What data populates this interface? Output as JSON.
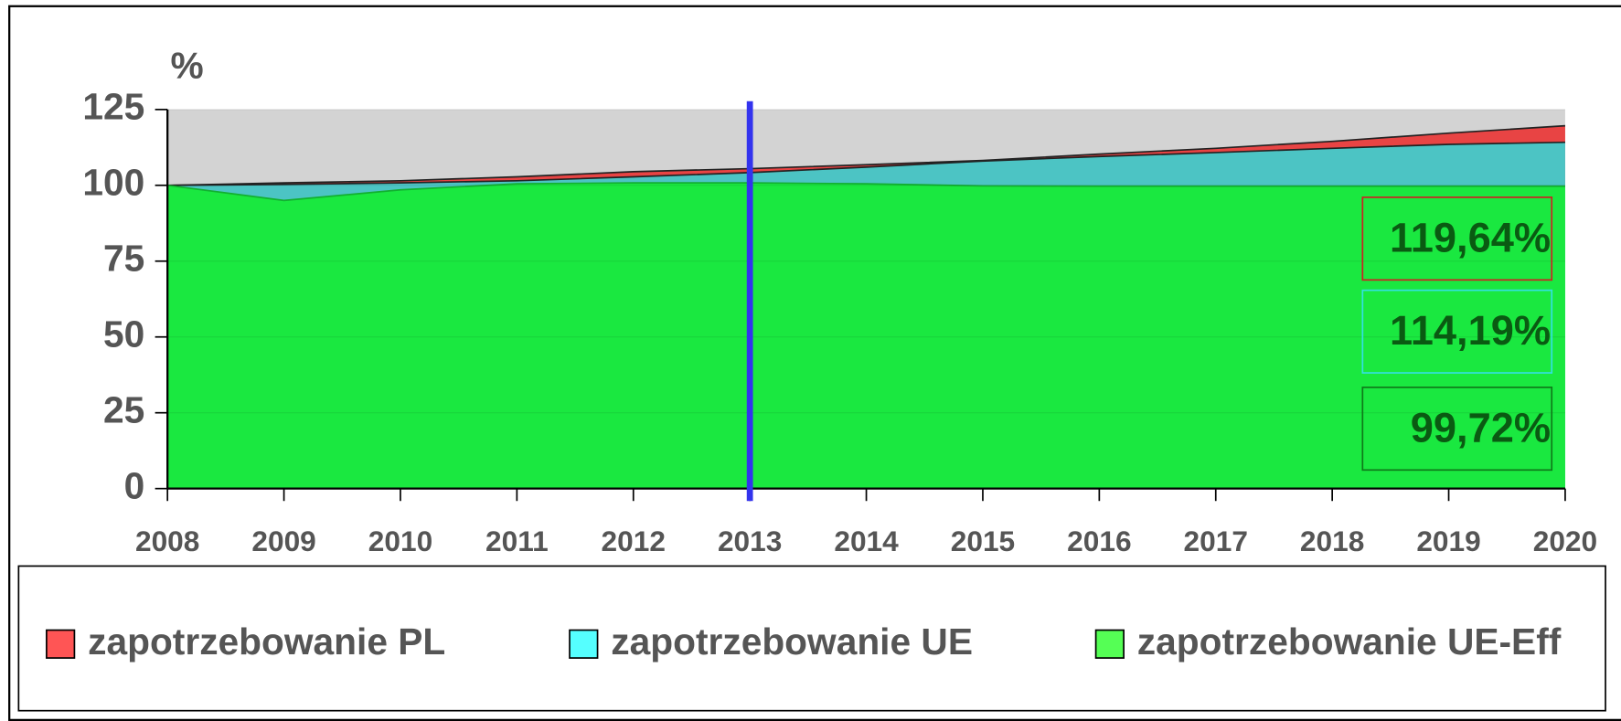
{
  "chart_data": {
    "type": "area",
    "y_label": "%",
    "categories": [
      "2008",
      "2009",
      "2010",
      "2011",
      "2012",
      "2013",
      "2014",
      "2015",
      "2016",
      "2017",
      "2018",
      "2019",
      "2020"
    ],
    "series": [
      {
        "name": "zapotrzebowanie PL",
        "color": "#e84444",
        "legend_color": "#ff5555",
        "values": [
          100,
          100.8,
          101.5,
          102.8,
          104.5,
          105.5,
          106.8,
          108.2,
          110.3,
          112.2,
          114.5,
          117.2,
          119.64
        ],
        "value_labels": [
          null,
          null,
          null,
          null,
          null,
          null,
          null,
          null,
          null,
          null,
          null,
          null,
          "119,64%"
        ]
      },
      {
        "name": "zapotrzebowanie UE",
        "color": "#4cc4c4",
        "legend_color": "#55ffff",
        "values": [
          100,
          100.3,
          100.8,
          101.5,
          102.8,
          104.2,
          106,
          108,
          109.5,
          110.8,
          112.2,
          113.5,
          114.19
        ],
        "value_labels": [
          null,
          null,
          null,
          null,
          null,
          null,
          null,
          null,
          null,
          null,
          null,
          null,
          "114,19%"
        ]
      },
      {
        "name": "zapotrzebowanie UE-Eff",
        "color": "#1ae840",
        "legend_color": "#55ff55",
        "values": [
          100,
          95,
          98.5,
          100.5,
          100.8,
          100.8,
          100.5,
          99.8,
          99.7,
          99.7,
          99.7,
          99.7,
          99.72
        ],
        "value_labels": [
          null,
          null,
          null,
          null,
          null,
          null,
          null,
          null,
          null,
          null,
          null,
          null,
          "99,72%"
        ]
      }
    ],
    "ylim": [
      0,
      125
    ],
    "yticks": [
      0,
      25,
      50,
      75,
      100,
      125
    ],
    "vline": "2013",
    "plot_background": "#d3d3d3"
  }
}
